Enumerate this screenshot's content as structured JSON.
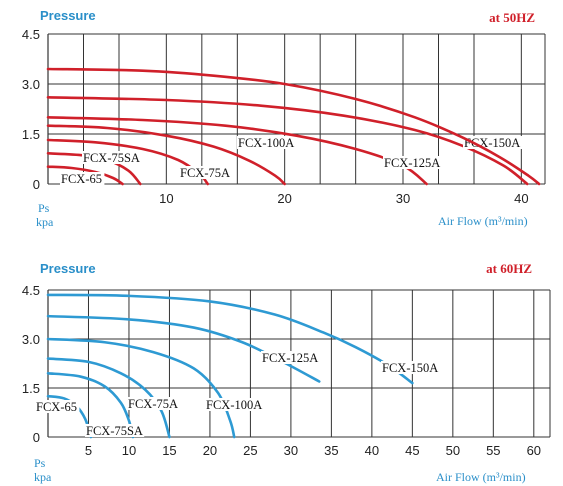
{
  "chart_data": [
    {
      "type": "line",
      "title": "Pressure",
      "subtitle": "at 50HZ",
      "ylabel_line1": "Ps",
      "ylabel_line2": "kpa",
      "xlabel": "Air Flow (m³/min)",
      "xlim": [
        0,
        42
      ],
      "ylim": [
        0,
        4.5
      ],
      "xticks": [
        10,
        20,
        30,
        40
      ],
      "yticks": [
        "4.5",
        "3.0",
        "1.5",
        "0"
      ],
      "series_color": "#d0202a",
      "header_color": "#2a8fc9",
      "freq_color": "#d0202a",
      "grid": true,
      "series": [
        {
          "name": "FCX-65",
          "points": [
            [
              0,
              0.52
            ],
            [
              2,
              0.48
            ],
            [
              4,
              0.36
            ],
            [
              5.5,
              0.18
            ],
            [
              6.3,
              0
            ]
          ]
        },
        {
          "name": "FCX-75SA",
          "points": [
            [
              0,
              0.92
            ],
            [
              3,
              0.86
            ],
            [
              5,
              0.72
            ],
            [
              6.8,
              0.4
            ],
            [
              7.8,
              0
            ]
          ]
        },
        {
          "name": "FCX-75A",
          "points": [
            [
              0,
              1.32
            ],
            [
              4,
              1.25
            ],
            [
              8,
              1.05
            ],
            [
              11,
              0.72
            ],
            [
              12.8,
              0.3
            ],
            [
              13.5,
              0
            ]
          ]
        },
        {
          "name": "FCX-100A",
          "points": [
            [
              0,
              1.75
            ],
            [
              5,
              1.68
            ],
            [
              10,
              1.45
            ],
            [
              14,
              1.12
            ],
            [
              17,
              0.7
            ],
            [
              19.2,
              0.25
            ],
            [
              20,
              0
            ]
          ]
        },
        {
          "name": "FCX-125A",
          "points": [
            [
              0,
              2.0
            ],
            [
              8,
              1.92
            ],
            [
              15,
              1.75
            ],
            [
              21,
              1.45
            ],
            [
              26,
              1.05
            ],
            [
              30,
              0.55
            ],
            [
              32,
              0
            ]
          ]
        },
        {
          "name": "FCX-150A",
          "points": [
            [
              0,
              2.6
            ],
            [
              10,
              2.52
            ],
            [
              18,
              2.35
            ],
            [
              25,
              2.05
            ],
            [
              31,
              1.62
            ],
            [
              35,
              1.15
            ],
            [
              38.5,
              0.55
            ],
            [
              40.5,
              0
            ]
          ]
        },
        {
          "name": "",
          "points": [
            [
              0,
              3.45
            ],
            [
              8,
              3.4
            ],
            [
              14,
              3.25
            ],
            [
              20,
              3.0
            ],
            [
              26,
              2.55
            ],
            [
              31,
              2.0
            ],
            [
              35,
              1.4
            ],
            [
              38.2,
              0.8
            ],
            [
              40.6,
              0.25
            ],
            [
              41.5,
              0
            ]
          ]
        }
      ]
    },
    {
      "type": "line",
      "title": "Pressure",
      "subtitle": "at 60HZ",
      "ylabel_line1": "Ps",
      "ylabel_line2": "kpa",
      "xlabel": "Air Flow (m³/min)",
      "xlim": [
        0,
        62
      ],
      "ylim": [
        0,
        4.5
      ],
      "xticks": [
        5,
        10,
        15,
        20,
        25,
        30,
        35,
        40,
        45,
        50,
        55,
        60
      ],
      "yticks": [
        "4.5",
        "3.0",
        "1.5",
        "0"
      ],
      "series_color": "#2e9ad3",
      "header_color": "#2a8fc9",
      "freq_color": "#d0202a",
      "grid": true,
      "series": [
        {
          "name": "FCX-65",
          "points": [
            [
              0,
              1.25
            ],
            [
              2,
              1.18
            ],
            [
              3.5,
              0.95
            ],
            [
              4.6,
              0.55
            ],
            [
              5.3,
              0
            ]
          ]
        },
        {
          "name": "FCX-75SA",
          "points": [
            [
              0,
              1.95
            ],
            [
              4,
              1.85
            ],
            [
              7,
              1.55
            ],
            [
              9,
              1.05
            ],
            [
              10,
              0.5
            ],
            [
              10.5,
              0
            ]
          ]
        },
        {
          "name": "FCX-75A",
          "points": [
            [
              0,
              2.4
            ],
            [
              5,
              2.3
            ],
            [
              9,
              1.95
            ],
            [
              12,
              1.45
            ],
            [
              14,
              0.8
            ],
            [
              15,
              0
            ]
          ]
        },
        {
          "name": "FCX-100A",
          "points": [
            [
              0,
              3.0
            ],
            [
              7,
              2.9
            ],
            [
              13,
              2.6
            ],
            [
              18,
              2.1
            ],
            [
              21,
              1.35
            ],
            [
              22.5,
              0.5
            ],
            [
              23,
              0
            ]
          ]
        },
        {
          "name": "FCX-125A",
          "points": [
            [
              0,
              3.7
            ],
            [
              10,
              3.6
            ],
            [
              18,
              3.35
            ],
            [
              24,
              2.9
            ],
            [
              29,
              2.3
            ],
            [
              33.5,
              1.7
            ]
          ]
        },
        {
          "name": "FCX-150A",
          "points": [
            [
              0,
              4.35
            ],
            [
              10,
              4.32
            ],
            [
              20,
              4.15
            ],
            [
              28,
              3.75
            ],
            [
              34,
              3.2
            ],
            [
              38,
              2.75
            ],
            [
              42,
              2.2
            ],
            [
              45,
              1.65
            ]
          ]
        }
      ]
    }
  ]
}
